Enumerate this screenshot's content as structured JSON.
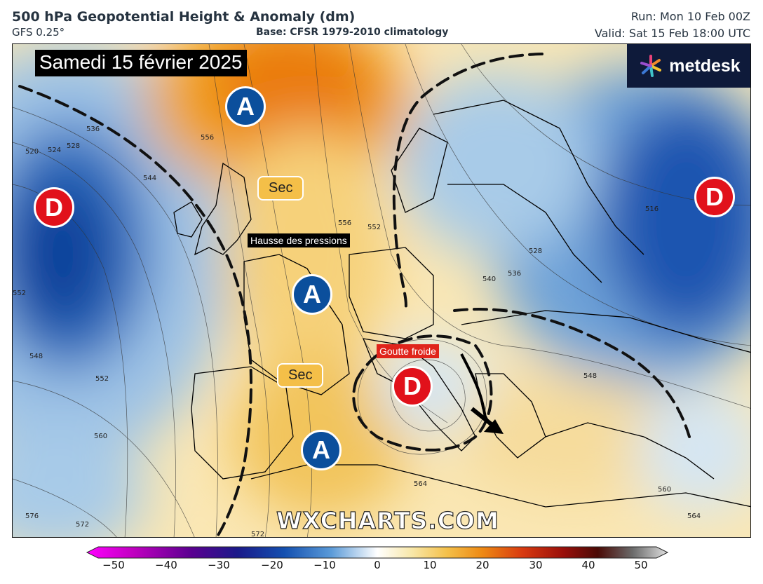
{
  "header": {
    "title": "500 hPa Geopotential Height & Anomaly (dm)",
    "model": "GFS 0.25°",
    "base": "Base: CFSR 1979-2010 climatology",
    "run": "Run: Mon 10 Feb 00Z",
    "valid": "Valid: Sat 15 Feb 18:00 UTC"
  },
  "map": {
    "date_label": "Samedi 15 février 2025",
    "logo_text": "metdesk",
    "watermark": "WXCHARTS.COM",
    "pressure_centers": [
      {
        "type": "high",
        "letter": "A"
      },
      {
        "type": "high",
        "letter": "A"
      },
      {
        "type": "high",
        "letter": "A"
      },
      {
        "type": "low",
        "letter": "D"
      },
      {
        "type": "low",
        "letter": "D"
      },
      {
        "type": "low",
        "letter": "D"
      }
    ],
    "annotations": {
      "sec_1": "Sec",
      "sec_2": "Sec",
      "pressure_rise": "Hausse des pressions",
      "cut_off_low": "Goutte froide"
    },
    "contour_labels": [
      "520",
      "524",
      "528",
      "536",
      "544",
      "556",
      "552",
      "556",
      "552",
      "548",
      "552",
      "560",
      "576",
      "572",
      "572",
      "564",
      "548",
      "560",
      "564",
      "540",
      "536",
      "528",
      "516"
    ]
  },
  "colorbar": {
    "ticks": [
      "−50",
      "−40",
      "−30",
      "−20",
      "−10",
      "0",
      "10",
      "20",
      "30",
      "40",
      "50"
    ]
  },
  "colors": {
    "high_center": "#0b4f9c",
    "low_center": "#e1111b",
    "dry_label": "#f4bf48",
    "cut_off_label": "#e0241b"
  }
}
